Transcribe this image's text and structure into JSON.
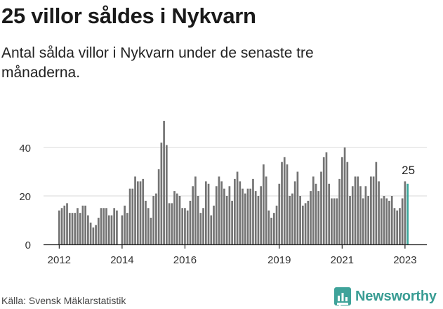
{
  "header": {
    "title": "25 villor såldes i Nykvarn",
    "subtitle": "Antal sålda villor i Nykvarn under de senaste tre månaderna."
  },
  "footer": {
    "source": "Källa: Svensk Mäklarstatistik",
    "brand": "Newsworthy"
  },
  "colors": {
    "bar": "#747474",
    "highlight": "#3aa79b",
    "grid": "#d9d9d9",
    "brand": "#3a9d94"
  },
  "chart_data": {
    "type": "bar",
    "title": "25 villor såldes i Nykvarn",
    "ylim": [
      0,
      50
    ],
    "yticks": [
      0,
      20,
      40
    ],
    "xlabels": [
      {
        "label": "2012",
        "index": 0
      },
      {
        "label": "2014",
        "index": 24
      },
      {
        "label": "2016",
        "index": 48
      },
      {
        "label": "2019",
        "index": 84
      },
      {
        "label": "2021",
        "index": 108
      },
      {
        "label": "2023",
        "index": 132
      }
    ],
    "highlight_label": "25",
    "values": [
      14,
      15,
      16,
      17,
      13,
      13,
      13,
      15,
      13,
      16,
      16,
      12,
      9,
      7,
      8,
      11,
      15,
      15,
      15,
      12,
      12,
      15,
      14,
      0,
      12,
      16,
      13,
      23,
      23,
      28,
      26,
      26,
      27,
      18,
      15,
      11,
      20,
      21,
      31,
      42,
      51,
      41,
      17,
      17,
      22,
      21,
      20,
      15,
      15,
      14,
      18,
      24,
      28,
      20,
      13,
      15,
      26,
      25,
      12,
      16,
      24,
      28,
      26,
      23,
      20,
      24,
      18,
      27,
      30,
      26,
      23,
      21,
      23,
      23,
      27,
      22,
      20,
      24,
      33,
      28,
      14,
      11,
      13,
      16,
      25,
      34,
      36,
      33,
      20,
      21,
      26,
      30,
      20,
      16,
      17,
      18,
      22,
      28,
      25,
      22,
      30,
      36,
      38,
      25,
      19,
      19,
      19,
      27,
      36,
      40,
      34,
      20,
      24,
      28,
      28,
      24,
      19,
      24,
      20,
      28,
      28,
      34,
      26,
      19,
      20,
      19,
      18,
      20,
      15,
      14,
      15,
      19,
      26,
      25
    ]
  }
}
